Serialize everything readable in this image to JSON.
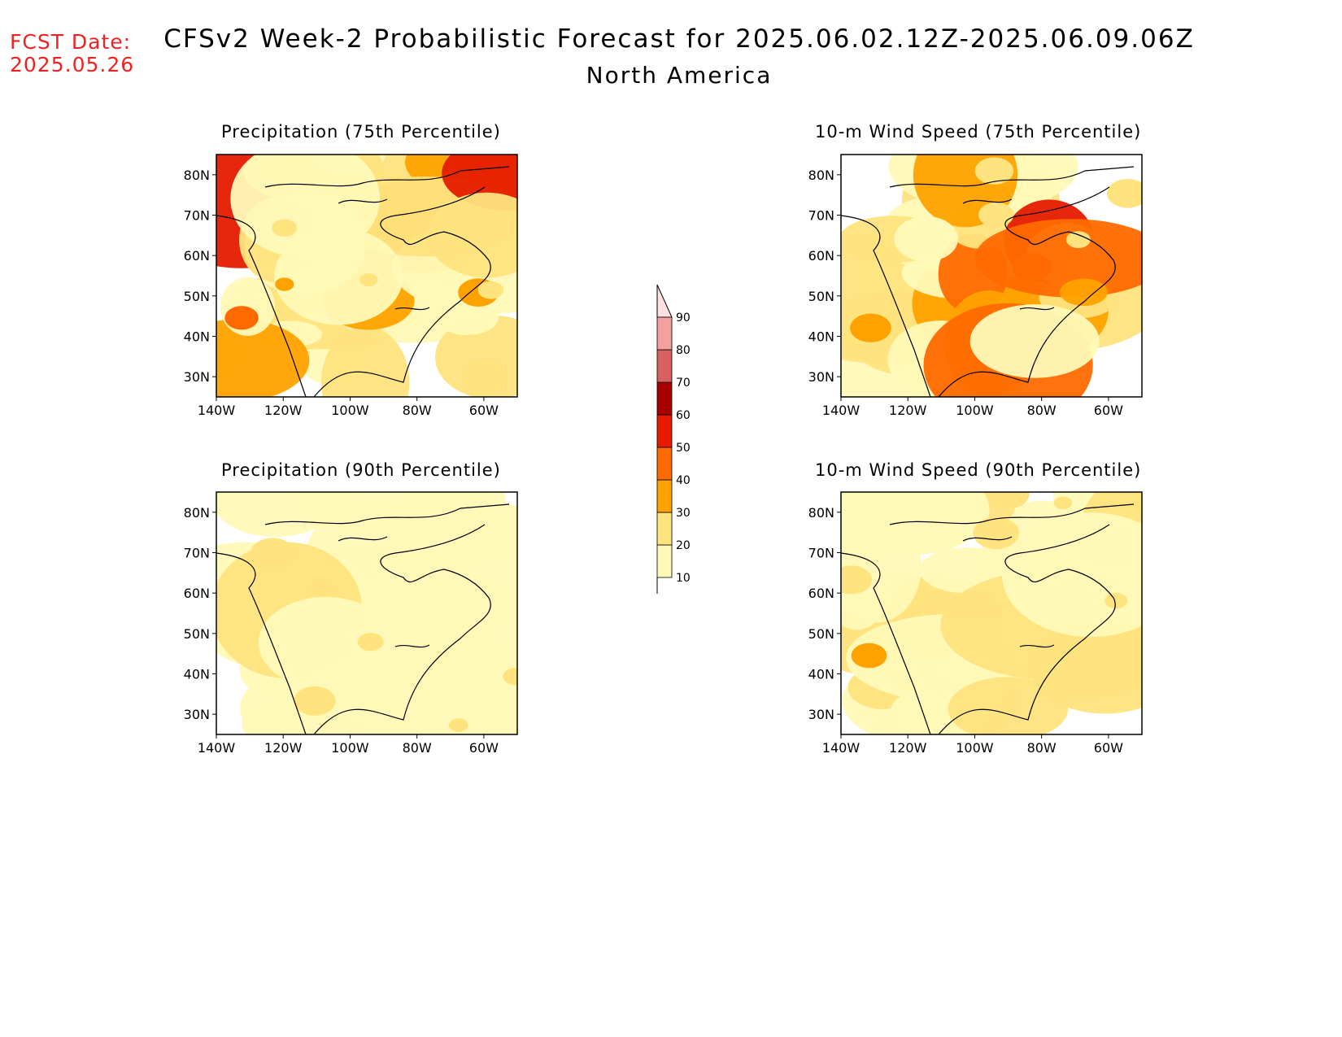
{
  "header": {
    "fcst_label": "FCST Date:",
    "fcst_date": "2025.05.26",
    "title": "CFSv2 Week-2 Probabilistic Forecast for 2025.06.02.12Z-2025.06.09.06Z",
    "subtitle": "North America"
  },
  "panels": [
    {
      "title": "Precipitation (75th Percentile)",
      "intensity": 0.7
    },
    {
      "title": "10-m Wind Speed (75th Percentile)",
      "intensity": 0.75
    },
    {
      "title": "Precipitation (90th Percentile)",
      "intensity": 0.25
    },
    {
      "title": "10-m Wind Speed (90th Percentile)",
      "intensity": 0.3
    }
  ],
  "axes": {
    "lat_labels": [
      "80N",
      "70N",
      "60N",
      "50N",
      "40N",
      "30N"
    ],
    "lon_labels": [
      "140W",
      "120W",
      "100W",
      "80W",
      "60W"
    ],
    "lat_range": [
      25,
      85
    ],
    "lon_range": [
      -140,
      -50
    ]
  },
  "colorbar": {
    "levels": [
      "10",
      "20",
      "30",
      "40",
      "50",
      "60",
      "70",
      "80",
      "90"
    ],
    "colors": [
      "#fff9b8",
      "#ffe37e",
      "#ffa200",
      "#ff6a00",
      "#e61b00",
      "#a80000",
      "#d96060",
      "#f3a0a0",
      "#ffe0e0"
    ]
  }
}
